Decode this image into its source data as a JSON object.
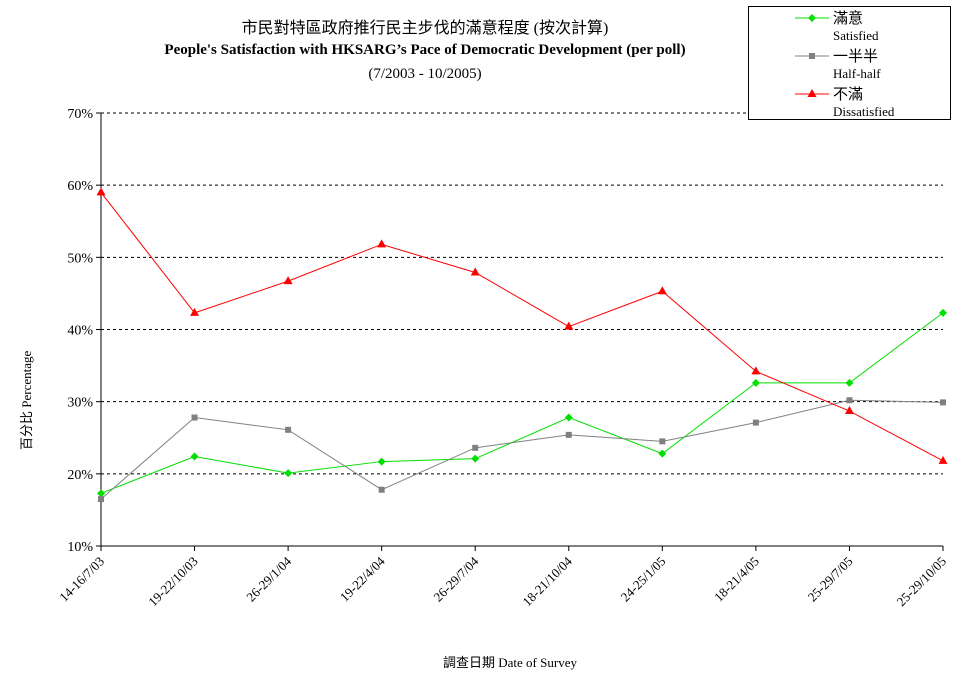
{
  "chart_data": {
    "type": "line",
    "title_zh": "市民對特區政府推行民主步伐的滿意程度 (按次計算)",
    "title": "People's Satisfaction with HKSARG’s Pace of Democratic Development  (per poll)",
    "subtitle": "(7/2003 - 10/2005)",
    "xlabel": "調查日期 Date of Survey",
    "ylabel": "百分比 Percentage",
    "ylim": [
      10,
      70
    ],
    "yticks": [
      "10%",
      "20%",
      "30%",
      "40%",
      "50%",
      "60%",
      "70%"
    ],
    "categories": [
      "14-16/7/03",
      "19-22/10/03",
      "26-29/1/04",
      "19-22/4/04",
      "26-29/7/04",
      "18-21/10/04",
      "24-25/1/05",
      "18-21/4/05",
      "25-29/7/05",
      "25-29/10/05"
    ],
    "grid": true,
    "legend": "top-right",
    "series": [
      {
        "name": "滿意",
        "name_en": "Satisfied",
        "color": "#00e000",
        "marker": "diamond",
        "values": [
          17.3,
          22.4,
          20.1,
          21.7,
          22.1,
          27.8,
          22.8,
          32.6,
          32.6,
          42.3
        ]
      },
      {
        "name": "一半半",
        "name_en": "Half-half",
        "color": "#808080",
        "marker": "square",
        "values": [
          16.5,
          27.8,
          26.1,
          17.8,
          23.6,
          25.4,
          24.5,
          27.1,
          30.2,
          29.9
        ]
      },
      {
        "name": "不滿",
        "name_en": "Dissatisfied",
        "color": "#ff0000",
        "marker": "triangle",
        "values": [
          59.0,
          42.3,
          46.7,
          51.8,
          47.9,
          40.4,
          45.3,
          34.2,
          28.7,
          21.8
        ]
      }
    ]
  }
}
